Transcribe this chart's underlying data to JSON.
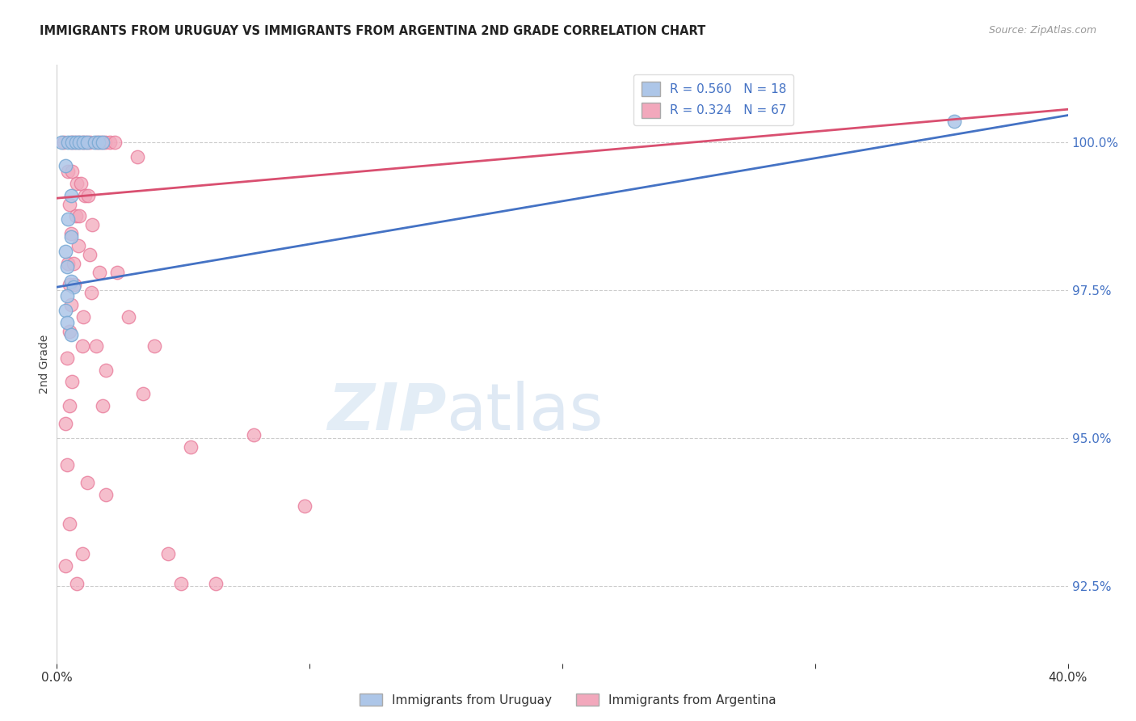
{
  "title": "IMMIGRANTS FROM URUGUAY VS IMMIGRANTS FROM ARGENTINA 2ND GRADE CORRELATION CHART",
  "source": "Source: ZipAtlas.com",
  "ylabel": "2nd Grade",
  "ylabel_ticks": [
    "92.5%",
    "95.0%",
    "97.5%",
    "100.0%"
  ],
  "ylabel_values": [
    92.5,
    95.0,
    97.5,
    100.0
  ],
  "xlim": [
    0.0,
    40.0
  ],
  "ylim": [
    91.2,
    101.3
  ],
  "watermark_zip": "ZIP",
  "watermark_atlas": "atlas",
  "uruguay_color": "#adc6e8",
  "argentina_color": "#f2a8bc",
  "uruguay_edge_color": "#7aaad4",
  "argentina_edge_color": "#e87898",
  "uruguay_line_color": "#4472c4",
  "argentina_line_color": "#d94f70",
  "uruguay_scatter": [
    [
      0.18,
      100.0
    ],
    [
      0.45,
      100.0
    ],
    [
      0.6,
      100.0
    ],
    [
      0.75,
      100.0
    ],
    [
      0.9,
      100.0
    ],
    [
      1.05,
      100.0
    ],
    [
      1.2,
      100.0
    ],
    [
      1.5,
      100.0
    ],
    [
      1.65,
      100.0
    ],
    [
      1.8,
      100.0
    ],
    [
      0.35,
      99.6
    ],
    [
      0.55,
      99.1
    ],
    [
      0.45,
      98.7
    ],
    [
      0.55,
      98.4
    ],
    [
      0.35,
      98.15
    ],
    [
      0.42,
      97.9
    ],
    [
      0.55,
      97.65
    ],
    [
      0.65,
      97.55
    ],
    [
      0.4,
      97.4
    ],
    [
      0.35,
      97.15
    ],
    [
      0.42,
      96.95
    ],
    [
      0.55,
      96.75
    ],
    [
      35.5,
      100.35
    ]
  ],
  "argentina_scatter": [
    [
      0.28,
      100.0
    ],
    [
      0.55,
      100.0
    ],
    [
      0.7,
      100.0
    ],
    [
      0.85,
      100.0
    ],
    [
      1.0,
      100.0
    ],
    [
      1.15,
      100.0
    ],
    [
      1.3,
      100.0
    ],
    [
      1.6,
      100.0
    ],
    [
      1.75,
      100.0
    ],
    [
      1.9,
      100.0
    ],
    [
      2.1,
      100.0
    ],
    [
      2.3,
      100.0
    ],
    [
      3.2,
      99.75
    ],
    [
      0.45,
      99.5
    ],
    [
      0.6,
      99.5
    ],
    [
      0.8,
      99.3
    ],
    [
      0.95,
      99.3
    ],
    [
      1.1,
      99.1
    ],
    [
      1.25,
      99.1
    ],
    [
      0.5,
      98.95
    ],
    [
      0.75,
      98.75
    ],
    [
      0.9,
      98.75
    ],
    [
      1.4,
      98.6
    ],
    [
      0.55,
      98.45
    ],
    [
      0.85,
      98.25
    ],
    [
      1.3,
      98.1
    ],
    [
      0.45,
      97.95
    ],
    [
      0.65,
      97.95
    ],
    [
      1.7,
      97.8
    ],
    [
      2.4,
      97.8
    ],
    [
      0.5,
      97.6
    ],
    [
      0.7,
      97.6
    ],
    [
      1.35,
      97.45
    ],
    [
      0.55,
      97.25
    ],
    [
      1.05,
      97.05
    ],
    [
      2.85,
      97.05
    ],
    [
      0.5,
      96.8
    ],
    [
      1.0,
      96.55
    ],
    [
      1.55,
      96.55
    ],
    [
      3.85,
      96.55
    ],
    [
      0.4,
      96.35
    ],
    [
      1.95,
      96.15
    ],
    [
      0.6,
      95.95
    ],
    [
      3.4,
      95.75
    ],
    [
      0.5,
      95.55
    ],
    [
      1.8,
      95.55
    ],
    [
      0.35,
      95.25
    ],
    [
      7.8,
      95.05
    ],
    [
      5.3,
      94.85
    ],
    [
      0.4,
      94.55
    ],
    [
      1.2,
      94.25
    ],
    [
      1.95,
      94.05
    ],
    [
      9.8,
      93.85
    ],
    [
      0.5,
      93.55
    ],
    [
      1.0,
      93.05
    ],
    [
      4.4,
      93.05
    ],
    [
      0.35,
      92.85
    ],
    [
      0.8,
      92.55
    ],
    [
      4.9,
      92.55
    ],
    [
      6.3,
      92.55
    ]
  ],
  "uruguay_trendline_x": [
    0.0,
    40.0
  ],
  "uruguay_trendline_y": [
    97.55,
    100.45
  ],
  "argentina_trendline_x": [
    0.0,
    40.0
  ],
  "argentina_trendline_y": [
    99.05,
    100.55
  ]
}
